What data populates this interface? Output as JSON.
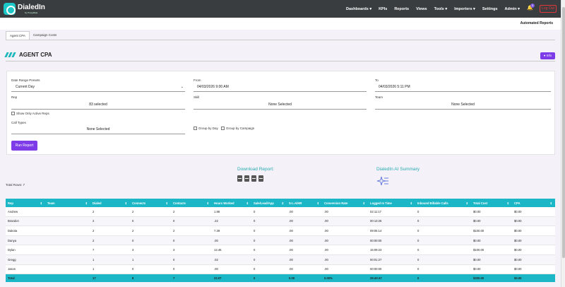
{
  "nav": {
    "logo_name": "DialedIn",
    "logo_sub": "by ProxyMate",
    "items": [
      "Dashboards ▾",
      "KPIs",
      "Reports",
      "Views",
      "Tools ▾",
      "Importers ▾",
      "Settings",
      "Admin ▾"
    ],
    "notif_count": "3",
    "logout": "Log Out"
  },
  "subheader": {
    "automated_reports": "Automated Reports"
  },
  "tabs": [
    "Agent CPA",
    "Campaign Costs"
  ],
  "page": {
    "title": "AGENT CPA",
    "info": "Info"
  },
  "filters": {
    "date_range_label": "Date Range Presets",
    "date_range_value": "Current Day",
    "from_label": "From",
    "from_value": "04/03/2026 9:00 AM",
    "to_label": "To",
    "to_value": "04/03/2026 5:11 PM",
    "rep_label": "Rep",
    "rep_value": "83 selected",
    "skill_label": "Skill",
    "skill_value": "None Selected",
    "team_label": "Team",
    "team_value": "None Selected",
    "show_active_label": "Show Only Active Reps",
    "call_types_label": "Call Types",
    "call_types_value": "None Selected",
    "group_day_label": "Group by Day",
    "group_campaign_label": "Group by Campaign",
    "run_label": "Run Report"
  },
  "download": {
    "title": "Download Report:",
    "icons": [
      "csv-file-icon",
      "xls-file-icon",
      "pdf-file-icon",
      "image-file-icon"
    ]
  },
  "ai": {
    "title": "DialedIn AI Summary"
  },
  "total_rows": "Total Rows: 7",
  "table": {
    "columns": [
      "Rep",
      "Team",
      "Dialed",
      "Connects",
      "Contacts",
      "Hours Worked",
      "Sale/Lead/App",
      "S-L-A/HR",
      "Conversion Rate",
      "Logged In Time",
      "Inbound Billable Calls",
      "Total Cost",
      "CPA"
    ],
    "rows": [
      [
        "Andrew",
        "",
        "2",
        "2",
        "2",
        "1.98",
        "0",
        ".00",
        ".00",
        "02:11:17",
        "0",
        "$0.00",
        "$0.00"
      ],
      [
        "Brandon",
        "",
        "2",
        "0",
        "0",
        ".22",
        "0",
        ".00",
        ".00",
        "00:13:26",
        "0",
        "$0.00",
        "$0.00"
      ],
      [
        "Dakota",
        "",
        "2",
        "2",
        "2",
        "7.39",
        "0",
        ".00",
        ".00",
        "09:05:14",
        "0",
        "$100.00",
        "$0.00"
      ],
      [
        "Danya",
        "",
        "2",
        "0",
        "0",
        ".00",
        "0",
        ".00",
        ".00",
        "00:00:00",
        "0",
        "$0.00",
        "$0.00"
      ],
      [
        "Dylan",
        "",
        "7",
        "3",
        "3",
        "12.46",
        "0",
        ".00",
        ".00",
        "15:09:23",
        "0",
        "$100.00",
        "$0.00"
      ],
      [
        "Gregg",
        "",
        "1",
        "1",
        "0",
        ".02",
        "0",
        ".00",
        ".00",
        "00:01:27",
        "0",
        "$0.00",
        "$0.00"
      ],
      [
        "Jason",
        "",
        "1",
        "0",
        "0",
        ".00",
        "0",
        ".00",
        ".00",
        "00:00:00",
        "0",
        "$0.00",
        "$0.00"
      ]
    ],
    "total": [
      "Total",
      "",
      "17",
      "8",
      "7",
      "22.07",
      "0",
      "0.00",
      "0.00%",
      "25:40:47",
      "0",
      "$200.00",
      "$0.00"
    ]
  },
  "colors": {
    "accent": "#1cb7c6",
    "purple": "#7d3ce8",
    "nav_bg": "#3a3d40",
    "logout": "#e03838"
  }
}
